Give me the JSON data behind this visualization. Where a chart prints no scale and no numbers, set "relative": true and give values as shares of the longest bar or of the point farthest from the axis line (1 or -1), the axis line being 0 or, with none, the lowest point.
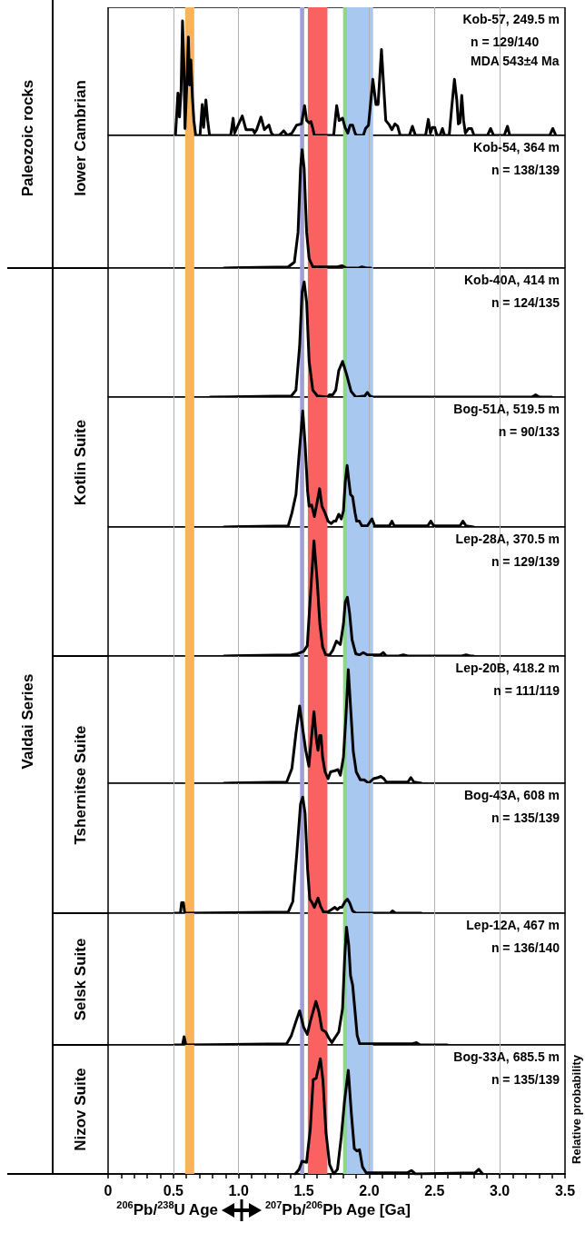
{
  "chart_data": [
    {
      "type": "line",
      "title": "Kob-57, 249.5 m",
      "subtitle": "n = 129/140\nMDA 543±4 Ma",
      "ylabel": "lower Cambrian",
      "annotations": [
        "Paleozoic rocks"
      ],
      "relative": true,
      "marker": "none",
      "grid": "x",
      "tick_labels": false,
      "xlim": [
        0,
        3.5
      ],
      "xticks": [
        0,
        0.5,
        1,
        1.5,
        2,
        2.5,
        3,
        3.5
      ],
      "bands": [
        {
          "axis": "x",
          "from": 0.59,
          "to": 0.66,
          "color": "#f9b35f"
        },
        {
          "axis": "x",
          "from": 1.47,
          "to": 1.5,
          "color": "#9d9de0"
        },
        {
          "axis": "x",
          "from": 1.53,
          "to": 1.68,
          "color": "#fa6262"
        },
        {
          "axis": "x",
          "from": 1.8,
          "to": 1.83,
          "color": "#8ed68e"
        },
        {
          "axis": "x",
          "from": 1.83,
          "to": 2.03,
          "color": "#a8c8f0"
        }
      ],
      "series": [
        {
          "color": "#000000",
          "x": [
            0.516,
            0.535,
            0.547,
            0.559,
            0.57,
            0.58,
            0.589,
            0.601,
            0.615,
            0.624,
            0.634,
            0.646,
            0.657,
            0.671,
            0.704,
            0.721,
            0.732,
            0.749,
            0.763,
            0.777,
            0.939,
            0.958,
            0.969,
            0.988,
            1.028,
            1.056,
            1.11,
            1.122,
            1.138,
            1.171,
            1.197,
            1.232,
            1.251,
            1.268,
            1.31,
            1.345,
            1.373,
            1.408,
            1.444,
            1.481,
            1.505,
            1.521,
            1.54,
            1.554,
            1.568,
            1.58,
            1.728,
            1.751,
            1.77,
            1.796,
            1.815,
            1.836,
            1.854,
            1.873,
            1.892,
            1.901,
            1.955,
            1.972,
            1.995,
            2.028,
            2.052,
            2.068,
            2.094,
            2.113,
            2.127,
            2.155,
            2.174,
            2.197,
            2.218,
            2.237,
            2.308,
            2.331,
            2.354,
            2.432,
            2.453,
            2.469,
            2.484,
            2.502,
            2.519,
            2.542,
            2.561,
            2.577,
            2.613,
            2.631,
            2.653,
            2.671,
            2.683,
            2.695,
            2.709,
            2.723,
            2.737,
            2.761,
            2.784,
            2.803,
            2.906,
            2.93,
            2.953,
            3.035,
            3.059,
            3.077,
            3.383,
            3.406,
            3.43
          ],
          "values": [
            0,
            0.37,
            0.16,
            0.39,
            1,
            0.65,
            0.06,
            0.39,
            0.86,
            0.44,
            0.66,
            0.33,
            0.13,
            0,
            0,
            0.27,
            0.07,
            0.31,
            0.13,
            0,
            0,
            0.15,
            0.02,
            0.07,
            0.17,
            0.05,
            0.05,
            0.02,
            0.05,
            0.16,
            0.05,
            0.09,
            0.02,
            0,
            0,
            0.04,
            0,
            0.02,
            0.09,
            0.1,
            0.26,
            0.13,
            0.11,
            0.12,
            0.06,
            0,
            0,
            0.26,
            0.13,
            0.15,
            0.07,
            0.02,
            0.09,
            0.09,
            0.02,
            0,
            0,
            0.06,
            0.09,
            0.49,
            0.27,
            0.27,
            0.75,
            0.39,
            0.13,
            0.09,
            0.05,
            0.1,
            0.08,
            0,
            0,
            0.08,
            0,
            0,
            0.14,
            0.02,
            0.07,
            0.07,
            0,
            0,
            0.06,
            0,
            0,
            0.23,
            0.49,
            0.31,
            0.1,
            0.11,
            0.35,
            0.13,
            0.02,
            0.06,
            0.06,
            0,
            0,
            0.06,
            0,
            0,
            0.08,
            0,
            0,
            0.06,
            0
          ]
        }
      ]
    },
    {
      "type": "line",
      "title": "Kob-54, 364 m",
      "subtitle": "n = 138/139",
      "relative": true,
      "marker": "none",
      "grid": "x",
      "tick_labels": false,
      "xlim": [
        0,
        3.5
      ],
      "xticks": [
        0,
        0.5,
        1,
        1.5,
        2,
        2.5,
        3,
        3.5
      ],
      "bands": [
        {
          "axis": "x",
          "from": 0.59,
          "to": 0.66,
          "color": "#f9b35f"
        },
        {
          "axis": "x",
          "from": 1.47,
          "to": 1.5,
          "color": "#9d9de0"
        },
        {
          "axis": "x",
          "from": 1.53,
          "to": 1.68,
          "color": "#fa6262"
        },
        {
          "axis": "x",
          "from": 1.8,
          "to": 1.83,
          "color": "#8ed68e"
        },
        {
          "axis": "x",
          "from": 1.83,
          "to": 2.03,
          "color": "#a8c8f0"
        }
      ],
      "series": [
        {
          "color": "#000000",
          "x": [
            0.887,
            1.38,
            1.427,
            1.455,
            1.474,
            1.486,
            1.502,
            1.521,
            1.54,
            1.568,
            1.615,
            1.756,
            1.791,
            1.826,
            1.92,
            1.944,
            1.979,
            2.014
          ],
          "values": [
            0,
            0.01,
            0.05,
            0.3,
            0.84,
            1,
            0.84,
            0.3,
            0.08,
            0.01,
            0.01,
            0.01,
            0.02,
            0,
            0,
            0.01,
            0,
            0
          ]
        }
      ]
    },
    {
      "type": "line",
      "title": "Kob-40A, 414 m",
      "subtitle": "n = 124/135",
      "ylabel": "Kotlin Suite",
      "annotations": [
        "Valdai Series"
      ],
      "relative": true,
      "marker": "none",
      "grid": "x",
      "tick_labels": false,
      "xlim": [
        0,
        3.5
      ],
      "xticks": [
        0,
        0.5,
        1,
        1.5,
        2,
        2.5,
        3,
        3.5
      ],
      "bands": [
        {
          "axis": "x",
          "from": 0.59,
          "to": 0.66,
          "color": "#f9b35f"
        },
        {
          "axis": "x",
          "from": 1.47,
          "to": 1.5,
          "color": "#9d9de0"
        },
        {
          "axis": "x",
          "from": 1.53,
          "to": 1.68,
          "color": "#fa6262"
        },
        {
          "axis": "x",
          "from": 1.8,
          "to": 1.83,
          "color": "#8ed68e"
        },
        {
          "axis": "x",
          "from": 1.83,
          "to": 2.03,
          "color": "#a8c8f0"
        }
      ],
      "series": [
        {
          "color": "#000000",
          "x": [
            0.782,
            1.404,
            1.439,
            1.467,
            1.486,
            1.502,
            1.521,
            1.54,
            1.568,
            1.603,
            1.678,
            1.697,
            1.721,
            1.744,
            1.767,
            1.796,
            1.826,
            1.861,
            1.897,
            1.967,
            1.986,
            2.005,
            2.026,
            3.246,
            3.275,
            3.305,
            3.399
          ],
          "values": [
            0,
            0.01,
            0.06,
            0.44,
            0.91,
            1,
            0.82,
            0.31,
            0.06,
            0.01,
            0,
            0.02,
            0.02,
            0.06,
            0.23,
            0.31,
            0.2,
            0.05,
            0,
            0.01,
            0.04,
            0.01,
            0,
            0,
            0.02,
            0,
            0
          ]
        }
      ]
    },
    {
      "type": "line",
      "title": "Bog-51A, 519.5 m",
      "subtitle": "n = 90/133",
      "relative": true,
      "marker": "none",
      "grid": "x",
      "tick_labels": false,
      "xlim": [
        0,
        3.5
      ],
      "xticks": [
        0,
        0.5,
        1,
        1.5,
        2,
        2.5,
        3,
        3.5
      ],
      "bands": [
        {
          "axis": "x",
          "from": 0.59,
          "to": 0.66,
          "color": "#f9b35f"
        },
        {
          "axis": "x",
          "from": 1.47,
          "to": 1.5,
          "color": "#9d9de0"
        },
        {
          "axis": "x",
          "from": 1.53,
          "to": 1.68,
          "color": "#fa6262"
        },
        {
          "axis": "x",
          "from": 1.8,
          "to": 1.83,
          "color": "#8ed68e"
        },
        {
          "axis": "x",
          "from": 1.83,
          "to": 2.03,
          "color": "#a8c8f0"
        }
      ],
      "series": [
        {
          "color": "#000000",
          "x": [
            0.887,
            1.38,
            1.408,
            1.439,
            1.462,
            1.491,
            1.509,
            1.528,
            1.54,
            1.559,
            1.58,
            1.599,
            1.62,
            1.638,
            1.662,
            1.685,
            1.709,
            1.728,
            1.744,
            1.767,
            1.786,
            1.803,
            1.817,
            1.831,
            1.845,
            1.857,
            1.873,
            1.892,
            1.904,
            1.925,
            1.944,
            1.986,
            2.021,
            2.042,
            2.155,
            2.174,
            2.192,
            2.448,
            2.472,
            2.495,
            2.695,
            2.718,
            2.742,
            2.8
          ],
          "values": [
            0,
            0.01,
            0.12,
            0.28,
            0.61,
            1,
            0.72,
            0.31,
            0.18,
            0.19,
            0.09,
            0.2,
            0.33,
            0.18,
            0.12,
            0.05,
            0.03,
            0.05,
            0.05,
            0.11,
            0.07,
            0.14,
            0.39,
            0.53,
            0.39,
            0.28,
            0.26,
            0.12,
            0.05,
            0.05,
            0.01,
            0.01,
            0.07,
            0.01,
            0.01,
            0.05,
            0.01,
            0.01,
            0.05,
            0.01,
            0.01,
            0.05,
            0.01,
            0
          ]
        }
      ]
    },
    {
      "type": "line",
      "title": "Lep-28A, 370.5 m",
      "subtitle": "n = 129/139",
      "relative": true,
      "marker": "none",
      "grid": "x",
      "tick_labels": false,
      "xlim": [
        0,
        3.5
      ],
      "xticks": [
        0,
        0.5,
        1,
        1.5,
        2,
        2.5,
        3,
        3.5
      ],
      "bands": [
        {
          "axis": "x",
          "from": 0.59,
          "to": 0.66,
          "color": "#f9b35f"
        },
        {
          "axis": "x",
          "from": 1.47,
          "to": 1.5,
          "color": "#9d9de0"
        },
        {
          "axis": "x",
          "from": 1.53,
          "to": 1.68,
          "color": "#fa6262"
        },
        {
          "axis": "x",
          "from": 1.8,
          "to": 1.83,
          "color": "#8ed68e"
        },
        {
          "axis": "x",
          "from": 1.83,
          "to": 2.03,
          "color": "#a8c8f0"
        }
      ],
      "series": [
        {
          "color": "#000000",
          "x": [
            0.887,
            1.404,
            1.451,
            1.498,
            1.526,
            1.549,
            1.577,
            1.601,
            1.622,
            1.643,
            1.667,
            1.697,
            1.721,
            1.749,
            1.779,
            1.803,
            1.817,
            1.833,
            1.85,
            1.869,
            1.897,
            1.925,
            1.955,
            1.986,
            2.085,
            2.108,
            2.131,
            2.225,
            2.261,
            2.296,
            2.707,
            2.742,
            2.777,
            2.8
          ],
          "values": [
            0,
            0.01,
            0.02,
            0.04,
            0.09,
            0.51,
            1,
            0.66,
            0.28,
            0.08,
            0.01,
            0.01,
            0.05,
            0.13,
            0.1,
            0.28,
            0.47,
            0.51,
            0.37,
            0.14,
            0.02,
            0.01,
            0.03,
            0.01,
            0.01,
            0.03,
            0,
            0,
            0.01,
            0,
            0,
            0.01,
            0,
            0
          ]
        }
      ]
    },
    {
      "type": "line",
      "title": "Lep-20B, 418.2 m",
      "subtitle": "n = 111/119",
      "ylabel": "Tshernitse Suite",
      "relative": true,
      "marker": "none",
      "grid": "x",
      "tick_labels": false,
      "xlim": [
        0,
        3.5
      ],
      "xticks": [
        0,
        0.5,
        1,
        1.5,
        2,
        2.5,
        3,
        3.5
      ],
      "bands": [
        {
          "axis": "x",
          "from": 0.59,
          "to": 0.66,
          "color": "#f9b35f"
        },
        {
          "axis": "x",
          "from": 1.47,
          "to": 1.5,
          "color": "#9d9de0"
        },
        {
          "axis": "x",
          "from": 1.53,
          "to": 1.68,
          "color": "#fa6262"
        },
        {
          "axis": "x",
          "from": 1.8,
          "to": 1.83,
          "color": "#8ed68e"
        },
        {
          "axis": "x",
          "from": 1.83,
          "to": 2.03,
          "color": "#a8c8f0"
        }
      ],
      "series": [
        {
          "color": "#000000",
          "x": [
            0.887,
            1.368,
            1.408,
            1.439,
            1.467,
            1.493,
            1.514,
            1.538,
            1.556,
            1.577,
            1.596,
            1.608,
            1.62,
            1.631,
            1.643,
            1.662,
            1.685,
            1.704,
            1.737,
            1.761,
            1.779,
            1.803,
            1.822,
            1.84,
            1.859,
            1.878,
            1.901,
            1.932,
            1.962,
            1.995,
            2.033,
            2.068,
            2.089,
            2.113,
            2.131,
            2.296,
            2.319,
            2.343,
            2.401
          ],
          "values": [
            0,
            0.01,
            0.13,
            0.44,
            0.68,
            0.46,
            0.29,
            0.15,
            0.38,
            0.63,
            0.38,
            0.29,
            0.42,
            0.42,
            0.23,
            0.1,
            0.04,
            0.1,
            0.11,
            0.12,
            0.07,
            0.23,
            0.59,
            1,
            0.64,
            0.28,
            0.1,
            0.03,
            0.03,
            0,
            0.04,
            0.05,
            0.06,
            0.04,
            0.01,
            0.01,
            0.05,
            0.01,
            0
          ]
        }
      ]
    },
    {
      "type": "line",
      "title": "Bog-43A, 608 m",
      "subtitle": "n = 135/139",
      "relative": true,
      "marker": "none",
      "grid": "x",
      "tick_labels": false,
      "xlim": [
        0,
        3.5
      ],
      "xticks": [
        0,
        0.5,
        1,
        1.5,
        2,
        2.5,
        3,
        3.5
      ],
      "bands": [
        {
          "axis": "x",
          "from": 0.59,
          "to": 0.66,
          "color": "#f9b35f"
        },
        {
          "axis": "x",
          "from": 1.47,
          "to": 1.5,
          "color": "#9d9de0"
        },
        {
          "axis": "x",
          "from": 1.53,
          "to": 1.68,
          "color": "#fa6262"
        },
        {
          "axis": "x",
          "from": 1.8,
          "to": 1.83,
          "color": "#8ed68e"
        },
        {
          "axis": "x",
          "from": 1.83,
          "to": 2.03,
          "color": "#a8c8f0"
        }
      ],
      "series": [
        {
          "color": "#000000",
          "x": [
            0.512,
            0.554,
            0.563,
            0.577,
            0.587,
            1.38,
            1.415,
            1.446,
            1.474,
            1.491,
            1.509,
            1.528,
            1.545,
            1.563,
            1.58,
            1.608,
            1.627,
            1.65,
            1.681,
            1.709,
            1.737,
            1.756,
            1.775,
            1.791,
            1.815,
            1.833,
            1.85,
            1.873,
            1.897,
            2.16,
            2.178,
            2.202,
            2.401
          ],
          "values": [
            0,
            0,
            0.09,
            0.09,
            0,
            0.01,
            0.1,
            0.52,
            0.94,
            1,
            0.86,
            0.38,
            0.12,
            0.09,
            0.05,
            0.13,
            0.06,
            0.01,
            0.01,
            0.03,
            0.05,
            0.03,
            0.05,
            0.05,
            0.1,
            0.12,
            0.09,
            0.02,
            0,
            0,
            0.02,
            0,
            0
          ]
        }
      ]
    },
    {
      "type": "line",
      "title": "Lep-12A, 467 m",
      "subtitle": "n = 136/140",
      "ylabel": "Selsk Suite",
      "relative": true,
      "marker": "none",
      "grid": "x",
      "tick_labels": false,
      "xlim": [
        0,
        3.5
      ],
      "xticks": [
        0,
        0.5,
        1,
        1.5,
        2,
        2.5,
        3,
        3.5
      ],
      "bands": [
        {
          "axis": "x",
          "from": 0.59,
          "to": 0.66,
          "color": "#f9b35f"
        },
        {
          "axis": "x",
          "from": 1.47,
          "to": 1.5,
          "color": "#9d9de0"
        },
        {
          "axis": "x",
          "from": 1.53,
          "to": 1.68,
          "color": "#fa6262"
        },
        {
          "axis": "x",
          "from": 1.8,
          "to": 1.83,
          "color": "#8ed68e"
        },
        {
          "axis": "x",
          "from": 1.83,
          "to": 2.03,
          "color": "#a8c8f0"
        }
      ],
      "series": [
        {
          "color": "#000000",
          "x": [
            0.512,
            0.57,
            0.582,
            0.596,
            1.368,
            1.404,
            1.439,
            1.467,
            1.498,
            1.526,
            1.549,
            1.592,
            1.615,
            1.638,
            1.667,
            1.69,
            1.714,
            1.737,
            1.767,
            1.796,
            1.812,
            1.826,
            1.843,
            1.857,
            1.873,
            1.892,
            1.908,
            1.927,
            2.331,
            2.362,
            2.39,
            2.599
          ],
          "values": [
            0,
            0,
            0.07,
            0,
            0.01,
            0.08,
            0.2,
            0.29,
            0.15,
            0.09,
            0.2,
            0.37,
            0.28,
            0.13,
            0.11,
            0.06,
            0.02,
            0.06,
            0.11,
            0.31,
            0.73,
            1,
            0.85,
            0.59,
            0.51,
            0.28,
            0.08,
            0.01,
            0.01,
            0.02,
            0,
            0
          ]
        }
      ]
    },
    {
      "type": "line",
      "title": "Bog-33A, 685.5 m",
      "subtitle": "n = 135/139",
      "ylabel": "Nizov Suite",
      "y2label": "Relative probability",
      "xlabel": "$^{207}$Pb/$^{206}$Pb Age [Ga]",
      "annotations": [
        "$^{206}$Pb/$^{238}$U Age"
      ],
      "relative": true,
      "marker": "none",
      "grid": "x",
      "xlim": [
        0,
        3.5
      ],
      "xticks": [
        0,
        {
          "value": 0.1,
          "label": null
        },
        {
          "value": 0.2,
          "label": null
        },
        {
          "value": 0.3,
          "label": null
        },
        {
          "value": 0.4,
          "label": null
        },
        0.5,
        {
          "value": 0.6,
          "label": null
        },
        {
          "value": 0.7,
          "label": null
        },
        {
          "value": 0.8,
          "label": null
        },
        {
          "value": 0.9,
          "label": null
        },
        {
          "value": 1,
          "label": "1.0"
        },
        {
          "value": 1.1,
          "label": null
        },
        {
          "value": 1.2,
          "label": null
        },
        {
          "value": 1.3,
          "label": null
        },
        {
          "value": 1.4,
          "label": null
        },
        1.5,
        {
          "value": 1.6,
          "label": null
        },
        {
          "value": 1.7,
          "label": null
        },
        {
          "value": 1.8,
          "label": null
        },
        {
          "value": 1.9,
          "label": null
        },
        {
          "value": 2,
          "label": "2.0"
        },
        {
          "value": 2.1,
          "label": null
        },
        {
          "value": 2.2,
          "label": null
        },
        {
          "value": 2.3,
          "label": null
        },
        {
          "value": 2.4,
          "label": null
        },
        2.5,
        {
          "value": 2.6,
          "label": null
        },
        {
          "value": 2.7,
          "label": null
        },
        {
          "value": 2.8,
          "label": null
        },
        {
          "value": 2.9,
          "label": null
        },
        {
          "value": 3,
          "label": "3.0"
        },
        {
          "value": 3.1,
          "label": null
        },
        {
          "value": 3.2,
          "label": null
        },
        {
          "value": 3.3,
          "label": null
        },
        {
          "value": 3.4,
          "label": null
        },
        3.5
      ],
      "bands": [
        {
          "axis": "x",
          "from": 0.59,
          "to": 0.66,
          "color": "#f9b35f"
        },
        {
          "axis": "x",
          "from": 1.47,
          "to": 1.5,
          "color": "#9d9de0"
        },
        {
          "axis": "x",
          "from": 1.53,
          "to": 1.68,
          "color": "#fa6262"
        },
        {
          "axis": "x",
          "from": 1.8,
          "to": 1.83,
          "color": "#8ed68e"
        },
        {
          "axis": "x",
          "from": 1.83,
          "to": 2.03,
          "color": "#a8c8f0"
        }
      ],
      "series": [
        {
          "color": "#000000",
          "x": [
            1.434,
            1.463,
            1.486,
            1.52,
            1.549,
            1.571,
            1.594,
            1.626,
            1.646,
            1.669,
            1.697,
            1.729,
            1.757,
            1.786,
            1.811,
            1.84,
            1.863,
            1.886,
            1.906,
            1.926,
            1.949,
            1.977,
            2.291,
            2.323,
            2.354,
            2.811,
            2.84,
            2.869
          ],
          "values": [
            0,
            0.04,
            0.11,
            0.1,
            0.39,
            0.82,
            0.83,
            1,
            0.81,
            0.36,
            0.08,
            0,
            0.04,
            0.32,
            0.63,
            0.9,
            0.53,
            0.22,
            0.2,
            0.21,
            0.06,
            0.01,
            0.01,
            0.03,
            0,
            0.01,
            0.04,
            0
          ]
        }
      ]
    }
  ]
}
